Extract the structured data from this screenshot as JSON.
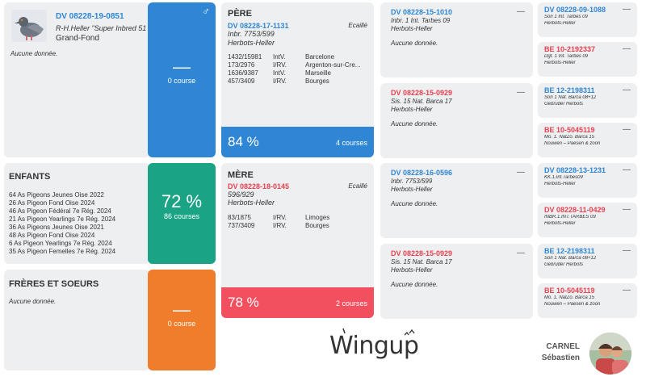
{
  "subject": {
    "ring": "DV 08228-19-0851",
    "line": "R-H.Heller \"Super Inbred 51",
    "owner": "Grand-Fond",
    "no_data": "Aucune donnée.",
    "gender": "♂",
    "stat_value": "—",
    "stat_label": "0 course"
  },
  "children": {
    "title": "ENFANTS",
    "items": [
      "64 As Pigeons Jeunes Oise 2022",
      "26 As Pigeon Fond Oise 2024",
      "46 As Pigeon Fédéral 7e Rég. 2024",
      "21 As Pigeon Yearlings 7e Rég. 2024",
      "36 As Pigeons Jeunes Oise 2021",
      "48 As Pigeon Fond Oise 2024",
      "6 As Pigeon Yearlings 7e Rég. 2024",
      "35 As Pigeon Femelles 7e Rég. 2024"
    ],
    "stat_value": "72 %",
    "stat_label": "86 courses"
  },
  "siblings": {
    "title": "FRÈRES ET SOEURS",
    "no_data": "Aucune donnée.",
    "stat_value": "—",
    "stat_label": "0 course"
  },
  "father": {
    "title": "PÈRE",
    "ring": "DV 08228-17-1131",
    "color": "Ecaillé",
    "line": "Inbr. 7753/599",
    "owner": "Herbots-Heller",
    "races": [
      {
        "place": "1432/15981",
        "type": "IntV.",
        "city": "Barcelone"
      },
      {
        "place": "173/2976",
        "type": "I/RV.",
        "city": "Argenton-sur-Cre..."
      },
      {
        "place": "1636/9387",
        "type": "IntV.",
        "city": "Marseille"
      },
      {
        "place": "457/3409",
        "type": "I/RV.",
        "city": "Bourges"
      }
    ],
    "pct": "84 %",
    "count": "4 courses"
  },
  "mother": {
    "title": "MÈRE",
    "ring": "DV 08228-18-0145",
    "color": "Ecaillé",
    "line": "596/929",
    "owner": "Herbots-Heller",
    "races": [
      {
        "place": "83/1875",
        "type": "I/RV.",
        "city": "Limoges"
      },
      {
        "place": "737/3409",
        "type": "I/RV.",
        "city": "Bourges"
      }
    ],
    "pct": "78 %",
    "count": "2 courses"
  },
  "grandparents": [
    {
      "ring": "DV 08228-15-1010",
      "line": "Inbr. 1 Int. Tarbes 09",
      "owner": "Herbots-Heller",
      "no_data": "Aucune donnée.",
      "dash": "—"
    },
    {
      "ring": "DV 08228-15-0929",
      "line": "Sis. 15 Nat. Barca 17",
      "owner": "Herbots-Heller",
      "no_data": "Aucune donnée.",
      "dash": "—"
    },
    {
      "ring": "DV 08228-16-0596",
      "line": "Inbr. 7753/599",
      "owner": "Herbots-Heller",
      "no_data": "Aucune donnée.",
      "dash": "—"
    },
    {
      "ring": "DV 08228-15-0929",
      "line": "Sis. 15 Nat. Barca 17",
      "owner": "Herbots-Heller",
      "no_data": "Aucune donnée.",
      "dash": "—"
    }
  ],
  "great_grandparents": [
    {
      "ring": "DV 08228-09-1088",
      "line": "Son 1 Int. Tarbes 09",
      "owner": "Herbots-Heller",
      "dash": "—"
    },
    {
      "ring": "BE 10-2192337",
      "line": "Dgt. 1 Int. Tarbes 09",
      "owner": "Herbots-Heller",
      "dash": "—"
    },
    {
      "ring": "BE 12-2198311",
      "line": "Son 1 Nat. Barca 08+12",
      "owner": "Gebrüder Herbots",
      "dash": "—"
    },
    {
      "ring": "BE 10-5045119",
      "line": "Mo. 1. NatZo. Barca 15",
      "owner": "Nouwen – Paesen & zoon",
      "dash": "—"
    },
    {
      "ring": "DV 08228-13-1231",
      "line": "KK.1.Int.Tarbes09",
      "owner": "Herbots-Heller",
      "dash": "—"
    },
    {
      "ring": "DV 08228-11-0429",
      "line": "INBR.1.INT.TARBES 09",
      "owner": "Herbots-Heller",
      "dash": "—"
    },
    {
      "ring": "BE 12-2198311",
      "line": "Son 1 Nat. Barca 08+12",
      "owner": "Gebrüder Herbots",
      "dash": "—"
    },
    {
      "ring": "BE 10-5045119",
      "line": "Mo. 1. NatZo. Barca 15",
      "owner": "Nouwen – Paesen & zoon",
      "dash": "—"
    }
  ],
  "brand": {
    "logo": "Wingup"
  },
  "user": {
    "first": "CARNEL",
    "last": "Sébastien"
  },
  "colors": {
    "blue": "#2f86d4",
    "green": "#1aa385",
    "orange": "#f07d2b",
    "red": "#f24f5f",
    "card": "#eeeff1"
  }
}
